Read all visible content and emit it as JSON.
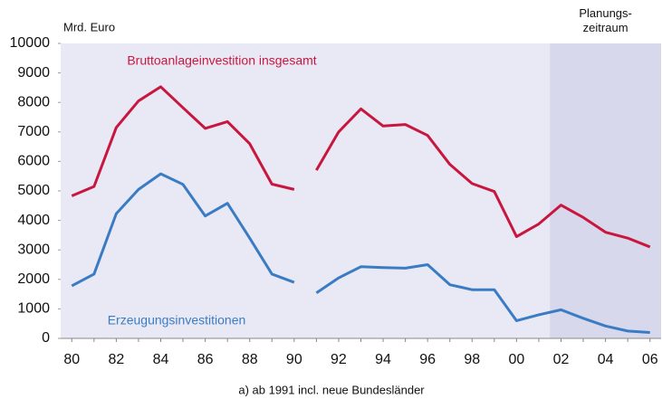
{
  "chart_data": {
    "type": "line",
    "y_unit_label": "Mrd. Euro",
    "footnote": "a) ab 1991 incl. neue Bundesländer",
    "shaded_period_label": "Planungs-\nzeitraum",
    "shaded_from": "02",
    "break_after": "90",
    "categories": [
      "80",
      null,
      "82",
      null,
      "84",
      null,
      "86",
      null,
      "88",
      null,
      "90",
      null,
      "92",
      null,
      "94",
      null,
      "96",
      null,
      "98",
      null,
      "00",
      null,
      "02",
      null,
      "04",
      null,
      "06"
    ],
    "series": [
      {
        "name": "Bruttoanlageinvestition insgesamt",
        "color": "#c8173f",
        "values": [
          4830,
          5150,
          7150,
          8050,
          8530,
          7820,
          7120,
          7350,
          6600,
          5230,
          5050,
          5700,
          7000,
          7780,
          7200,
          7250,
          6880,
          5900,
          5250,
          4980,
          3450,
          3880,
          4520,
          4100,
          3600,
          3400,
          3100
        ]
      },
      {
        "name": "Erzeugungsinvestitionen",
        "color": "#3a7cc4",
        "values": [
          1780,
          2180,
          4230,
          5050,
          5580,
          5220,
          4150,
          4580,
          3400,
          2180,
          1900,
          1540,
          2050,
          2430,
          2400,
          2380,
          2500,
          1820,
          1650,
          1650,
          600,
          800,
          970,
          680,
          420,
          250,
          200
        ]
      }
    ],
    "ylim": [
      0,
      10000
    ],
    "yticks": [
      0,
      1000,
      2000,
      3000,
      4000,
      5000,
      6000,
      7000,
      8000,
      9000,
      10000
    ],
    "grid": false
  }
}
